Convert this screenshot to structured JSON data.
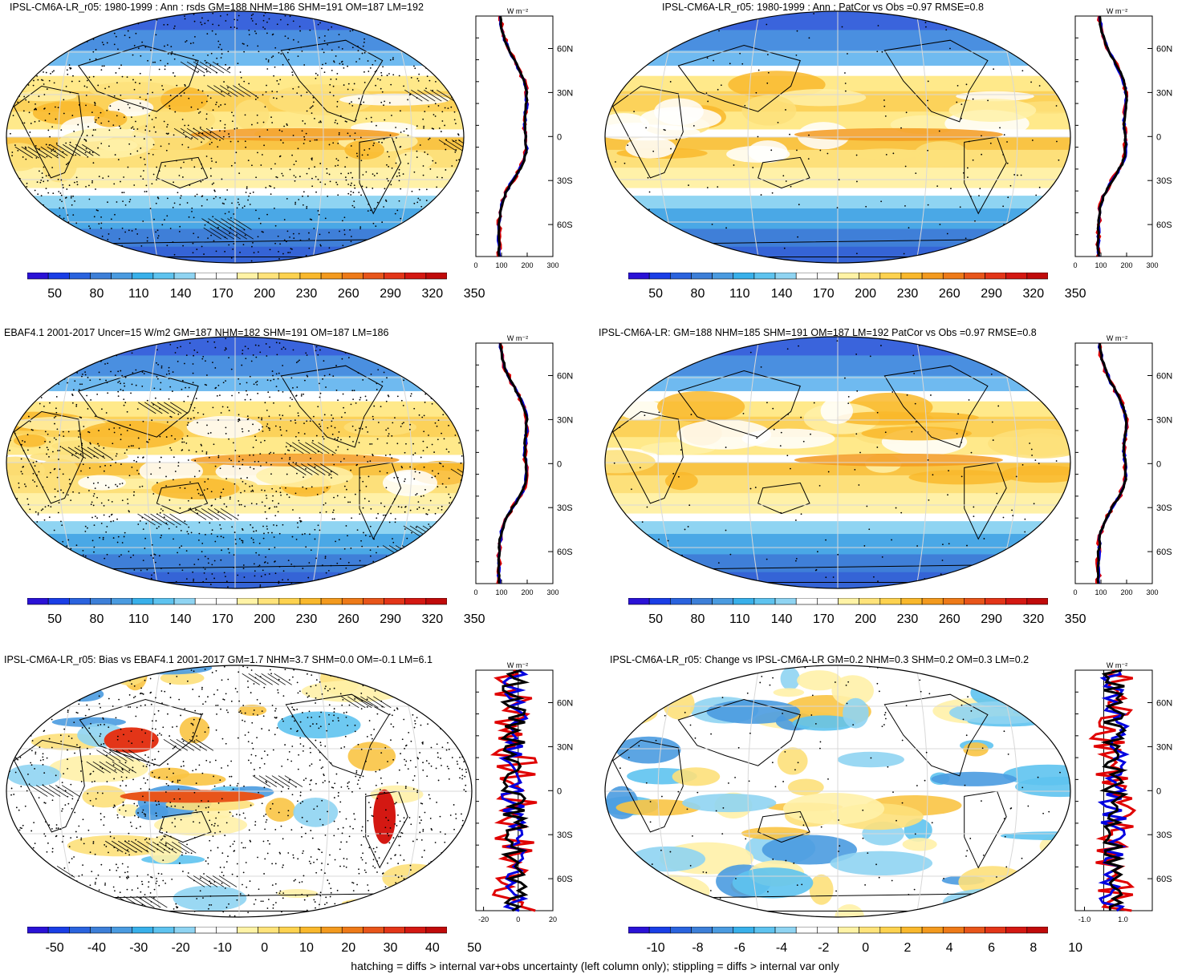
{
  "footer": "hatching = diffs > internal var+obs uncertainty (left column only); stippling = diffs > internal var only",
  "profile_unit": "W m⁻²",
  "lat_ticks": [
    "60N",
    "30N",
    "0",
    "30S",
    "60S"
  ],
  "panels": [
    {
      "id": "model-mean",
      "title": "IPSL-CM6A-LR_r05: 1980-1999 : Ann : rsds GM=188 NHM=186 SHM=191 OM=187 LM=192",
      "colorbar_labels": [
        "50",
        "80",
        "110",
        "140",
        "170",
        "200",
        "230",
        "260",
        "290",
        "320",
        "350"
      ],
      "profile_ticks": [
        "0",
        "100",
        "200",
        "300"
      ],
      "hatching": true,
      "stippling": "dense"
    },
    {
      "id": "ensemble-mean",
      "title": "IPSL-CM6A-LR_r05: 1980-1999 : Ann : PatCor vs Obs =0.97 RMSE=0.8",
      "colorbar_labels": [
        "50",
        "80",
        "110",
        "140",
        "170",
        "200",
        "230",
        "260",
        "290",
        "320",
        "350"
      ],
      "profile_ticks": [
        "0",
        "100",
        "200",
        "300"
      ],
      "hatching": false,
      "stippling": "sparse"
    },
    {
      "id": "observations",
      "title": "EBAF4.1 2001-2017 Uncer=15 W/m2 GM=187 NHM=182 SHM=191 OM=187 LM=186",
      "colorbar_labels": [
        "50",
        "80",
        "110",
        "140",
        "170",
        "200",
        "230",
        "260",
        "290",
        "320",
        "350"
      ],
      "profile_ticks": [
        "0",
        "100",
        "200",
        "300"
      ],
      "hatching": true,
      "stippling": "dense"
    },
    {
      "id": "ensemble-vs-obs",
      "title": "IPSL-CM6A-LR: GM=188 NHM=185 SHM=191 OM=187 LM=192 PatCor vs Obs =0.97 RMSE=0.8",
      "colorbar_labels": [
        "50",
        "80",
        "110",
        "140",
        "170",
        "200",
        "230",
        "260",
        "290",
        "320",
        "350"
      ],
      "profile_ticks": [
        "0",
        "100",
        "200",
        "300"
      ],
      "hatching": false,
      "stippling": "sparse"
    },
    {
      "id": "bias",
      "title": "IPSL-CM6A-LR_r05: Bias vs EBAF4.1 2001-2017 GM=1.7 NHM=3.7 SHM=0.0 OM=-0.1 LM=6.1",
      "colorbar_labels": [
        "-50",
        "-40",
        "-30",
        "-20",
        "-10",
        "0",
        "10",
        "20",
        "30",
        "40",
        "50"
      ],
      "profile_ticks": [
        "-20",
        "0",
        "20"
      ],
      "hatching": true,
      "stippling": "dense"
    },
    {
      "id": "change",
      "title": "IPSL-CM6A-LR_r05: Change vs IPSL-CM6A-LR GM=0.2 NHM=0.3 SHM=0.2 OM=0.3 LM=0.2",
      "colorbar_labels": [
        "-10",
        "-8",
        "-6",
        "-4",
        "-2",
        "0",
        "2",
        "4",
        "6",
        "8",
        "10"
      ],
      "profile_ticks": [
        "-1.0",
        "1.0"
      ],
      "hatching": false,
      "stippling": "sparse"
    }
  ],
  "colors": {
    "palette": [
      "#2a12d6",
      "#1a3ee6",
      "#2a63de",
      "#3d7fd8",
      "#4a9be0",
      "#38b0ea",
      "#5ec3ef",
      "#8fd4f2",
      "#ffffff",
      "#ffffff",
      "#fff3a6",
      "#ffe37a",
      "#fdd24f",
      "#f9b82c",
      "#f39a1e",
      "#ee7a18",
      "#e8551a",
      "#e33518",
      "#d41812",
      "#c00a0a"
    ],
    "series_model": "#e00000",
    "series_obs": "#0000e0",
    "series_ens": "#000000"
  }
}
